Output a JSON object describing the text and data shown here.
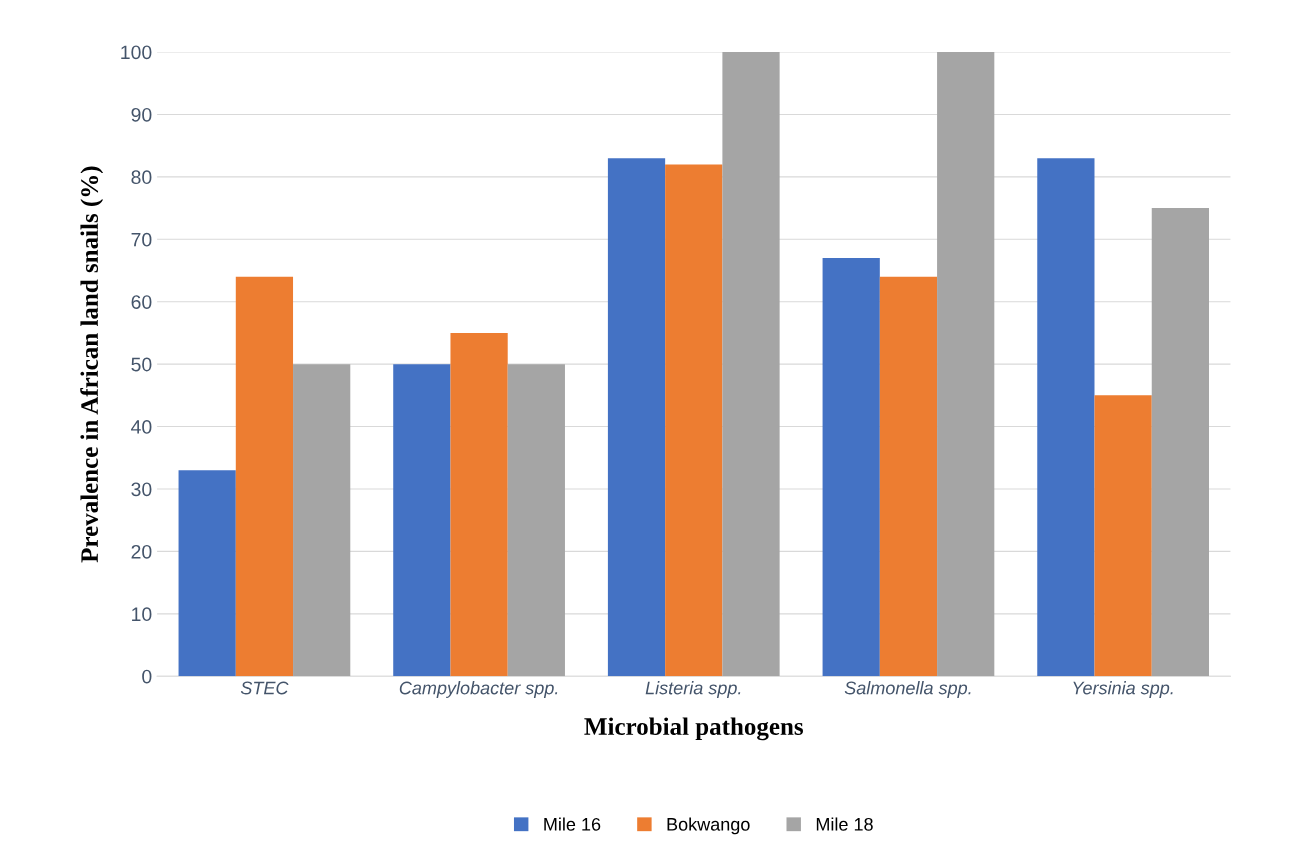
{
  "chart_data": {
    "type": "bar",
    "xlabel": "Microbial pathogens",
    "ylabel": "Prevalence in African land snails (%)",
    "categories": [
      "STEC",
      "Campylobacter spp.",
      "Listeria spp.",
      "Salmonella spp.",
      "Yersinia spp."
    ],
    "series": [
      {
        "name": "Mile 16",
        "color": "#4472c4",
        "values": [
          33,
          50,
          83,
          67,
          83
        ]
      },
      {
        "name": "Bokwango",
        "color": "#ed7d31",
        "values": [
          64,
          55,
          82,
          64,
          45
        ]
      },
      {
        "name": "Mile 18",
        "color": "#a5a5a5",
        "values": [
          50,
          50,
          100,
          100,
          75
        ]
      }
    ],
    "ylim": [
      0,
      100
    ],
    "yticks": [
      0,
      10,
      20,
      30,
      40,
      50,
      60,
      70,
      80,
      90,
      100
    ],
    "grid": "y",
    "legend": "bottom"
  }
}
